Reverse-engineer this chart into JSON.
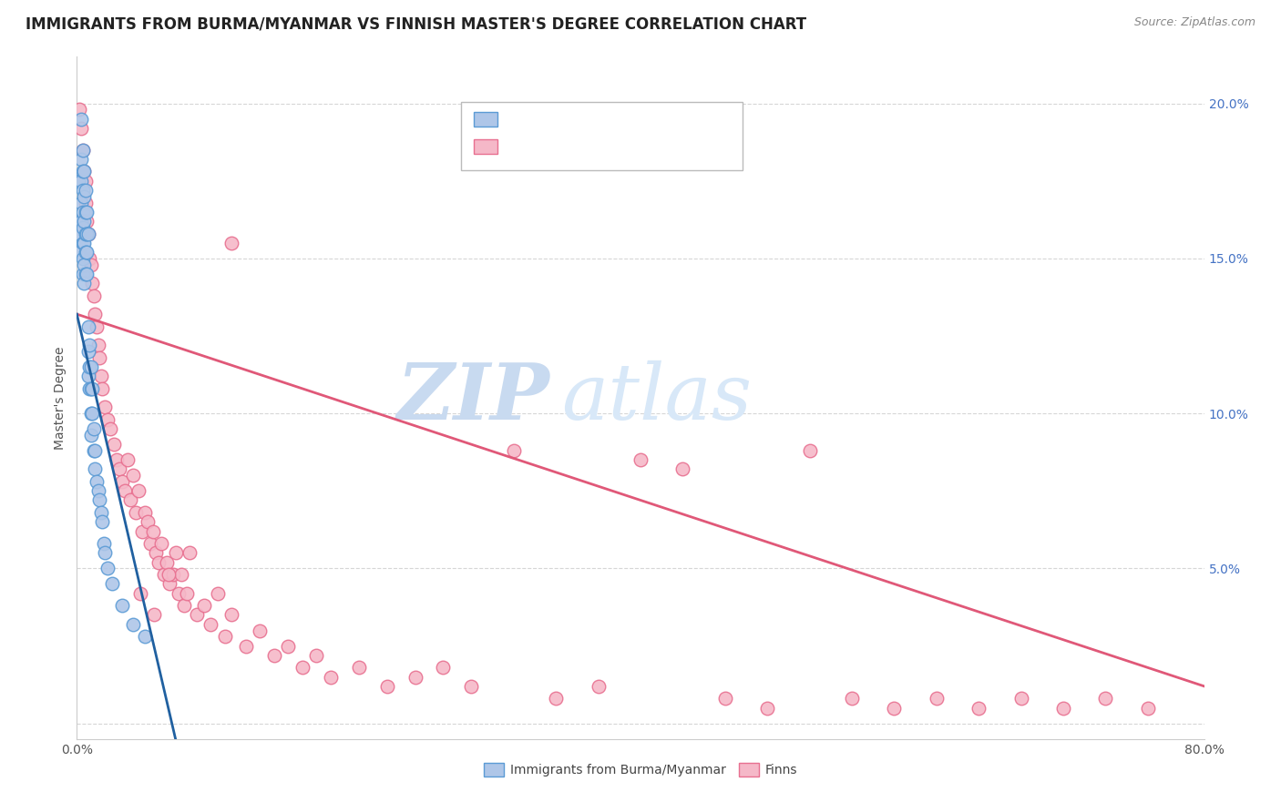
{
  "title": "IMMIGRANTS FROM BURMA/MYANMAR VS FINNISH MASTER'S DEGREE CORRELATION CHART",
  "source": "Source: ZipAtlas.com",
  "ylabel": "Master's Degree",
  "watermark_zip": "ZIP",
  "watermark_atlas": "atlas",
  "legend_label_blue": "Immigrants from Burma/Myanmar",
  "legend_label_pink": "Finns",
  "ytick_labels_right": [
    "",
    "5.0%",
    "10.0%",
    "15.0%",
    "20.0%"
  ],
  "ytick_values": [
    0.0,
    0.05,
    0.1,
    0.15,
    0.2
  ],
  "xlim": [
    0.0,
    0.8
  ],
  "ylim": [
    -0.005,
    0.215
  ],
  "blue_scatter_x": [
    0.001,
    0.002,
    0.002,
    0.002,
    0.003,
    0.003,
    0.003,
    0.003,
    0.003,
    0.004,
    0.004,
    0.004,
    0.004,
    0.004,
    0.004,
    0.004,
    0.004,
    0.005,
    0.005,
    0.005,
    0.005,
    0.005,
    0.005,
    0.006,
    0.006,
    0.006,
    0.006,
    0.006,
    0.007,
    0.007,
    0.007,
    0.007,
    0.008,
    0.008,
    0.008,
    0.008,
    0.009,
    0.009,
    0.009,
    0.01,
    0.01,
    0.01,
    0.01,
    0.011,
    0.011,
    0.012,
    0.012,
    0.013,
    0.013,
    0.014,
    0.015,
    0.016,
    0.017,
    0.018,
    0.019,
    0.02,
    0.022,
    0.025,
    0.032,
    0.04,
    0.048
  ],
  "blue_scatter_y": [
    0.175,
    0.162,
    0.158,
    0.152,
    0.195,
    0.182,
    0.175,
    0.168,
    0.162,
    0.185,
    0.178,
    0.172,
    0.165,
    0.16,
    0.155,
    0.15,
    0.145,
    0.178,
    0.17,
    0.162,
    0.155,
    0.148,
    0.142,
    0.172,
    0.165,
    0.158,
    0.152,
    0.145,
    0.165,
    0.158,
    0.152,
    0.145,
    0.158,
    0.128,
    0.12,
    0.112,
    0.122,
    0.115,
    0.108,
    0.115,
    0.108,
    0.1,
    0.093,
    0.108,
    0.1,
    0.095,
    0.088,
    0.088,
    0.082,
    0.078,
    0.075,
    0.072,
    0.068,
    0.065,
    0.058,
    0.055,
    0.05,
    0.045,
    0.038,
    0.032,
    0.028
  ],
  "pink_scatter_x": [
    0.002,
    0.003,
    0.004,
    0.005,
    0.006,
    0.006,
    0.007,
    0.008,
    0.009,
    0.01,
    0.011,
    0.012,
    0.013,
    0.014,
    0.015,
    0.016,
    0.017,
    0.018,
    0.02,
    0.022,
    0.024,
    0.026,
    0.028,
    0.03,
    0.032,
    0.034,
    0.036,
    0.038,
    0.04,
    0.042,
    0.044,
    0.046,
    0.048,
    0.05,
    0.052,
    0.054,
    0.056,
    0.058,
    0.06,
    0.062,
    0.064,
    0.066,
    0.068,
    0.07,
    0.072,
    0.074,
    0.076,
    0.078,
    0.08,
    0.085,
    0.09,
    0.095,
    0.1,
    0.105,
    0.11,
    0.12,
    0.13,
    0.14,
    0.15,
    0.16,
    0.17,
    0.18,
    0.2,
    0.22,
    0.24,
    0.26,
    0.28,
    0.31,
    0.34,
    0.37,
    0.4,
    0.43,
    0.46,
    0.49,
    0.52,
    0.55,
    0.58,
    0.61,
    0.64,
    0.67,
    0.7,
    0.73,
    0.76,
    0.11,
    0.045,
    0.055,
    0.065
  ],
  "pink_scatter_y": [
    0.198,
    0.192,
    0.185,
    0.178,
    0.175,
    0.168,
    0.162,
    0.158,
    0.15,
    0.148,
    0.142,
    0.138,
    0.132,
    0.128,
    0.122,
    0.118,
    0.112,
    0.108,
    0.102,
    0.098,
    0.095,
    0.09,
    0.085,
    0.082,
    0.078,
    0.075,
    0.085,
    0.072,
    0.08,
    0.068,
    0.075,
    0.062,
    0.068,
    0.065,
    0.058,
    0.062,
    0.055,
    0.052,
    0.058,
    0.048,
    0.052,
    0.045,
    0.048,
    0.055,
    0.042,
    0.048,
    0.038,
    0.042,
    0.055,
    0.035,
    0.038,
    0.032,
    0.042,
    0.028,
    0.035,
    0.025,
    0.03,
    0.022,
    0.025,
    0.018,
    0.022,
    0.015,
    0.018,
    0.012,
    0.015,
    0.018,
    0.012,
    0.088,
    0.008,
    0.012,
    0.085,
    0.082,
    0.008,
    0.005,
    0.088,
    0.008,
    0.005,
    0.008,
    0.005,
    0.008,
    0.005,
    0.008,
    0.005,
    0.155,
    0.042,
    0.035,
    0.048
  ],
  "blue_color": "#aec6e8",
  "pink_color": "#f5b8c8",
  "blue_edge_color": "#5b9bd5",
  "pink_edge_color": "#e87090",
  "blue_line_color": "#2060a0",
  "pink_line_color": "#e05878",
  "blue_line_x": [
    0.0,
    0.07
  ],
  "blue_line_y": [
    0.132,
    -0.005
  ],
  "pink_line_x": [
    0.0,
    0.8
  ],
  "pink_line_y": [
    0.132,
    0.012
  ],
  "background_color": "#ffffff",
  "grid_color": "#cccccc",
  "watermark_zip_color": "#c8daf0",
  "watermark_atlas_color": "#d8e8f8",
  "title_fontsize": 12,
  "tick_fontsize": 10,
  "legend_fontsize": 10,
  "source_fontsize": 9
}
